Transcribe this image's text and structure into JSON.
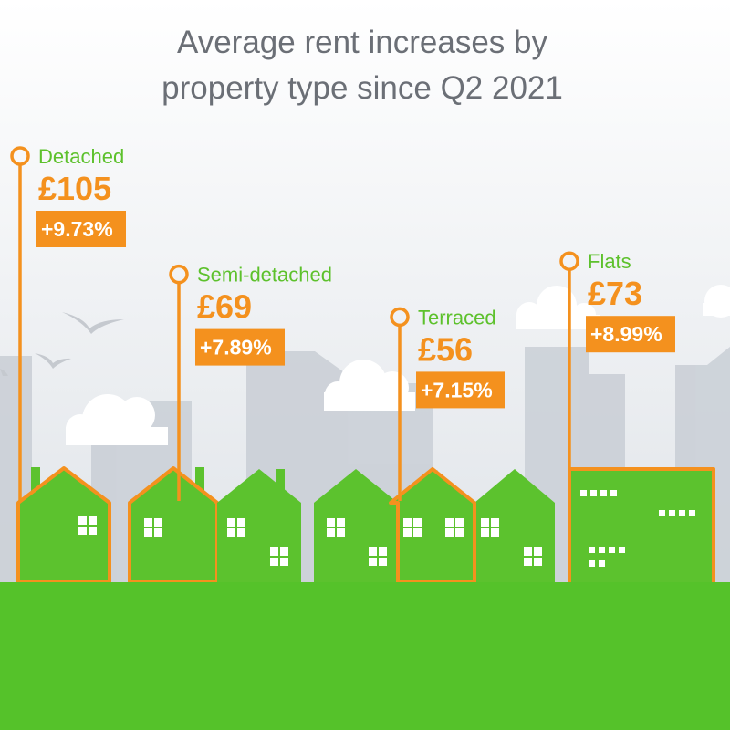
{
  "title_line1": "Average rent increases by",
  "title_line2": "property type since Q2 2021",
  "colors": {
    "sky_top": "#ffffff",
    "sky_bottom": "#d9dee4",
    "building": "#c9ced5",
    "cloud": "#ffffff",
    "house_green": "#5cc22e",
    "ground_green": "#55c22a",
    "accent_orange": "#f4911e",
    "label_green": "#5dc12c",
    "title_grey": "#6b6f76"
  },
  "chart_data": {
    "type": "bar",
    "title": "Average rent increases by property type since Q2 2021",
    "categories": [
      "Detached",
      "Semi-detached",
      "Terraced",
      "Flats"
    ],
    "series": [
      {
        "values": [
          105,
          69,
          56,
          73
        ]
      },
      {
        "values": [
          9.73,
          7.89,
          7.15,
          8.99
        ]
      }
    ],
    "value_labels": [
      "£105",
      "£69",
      "£56",
      "£73"
    ],
    "percent_labels": [
      "+9.73%",
      "+7.89%",
      "+7.15%",
      "+8.99%"
    ]
  }
}
